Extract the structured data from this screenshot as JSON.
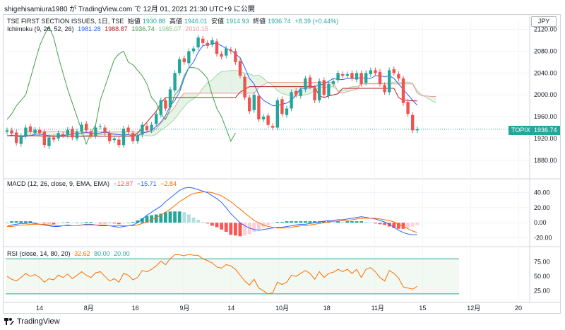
{
  "caption": "shigehisamiura1980 が TradingView.com で 12月 01, 2021 21:30 UTC+9 に公開",
  "currency": "JPY",
  "footer": {
    "brand": "TradingView"
  },
  "main_legend": {
    "title": "TSE FIRST SECTION ISSUES, 1日, TSE",
    "open_label": "始値",
    "open": "1930.88",
    "high_label": "高値",
    "high": "1946.01",
    "low_label": "安値",
    "low": "1914.93",
    "close_label": "終値",
    "close": "1936.74",
    "change": "+8.39 (+0.44%)"
  },
  "ichimoku_legend": {
    "title": "Ichimoku (9, 26, 52, 26)",
    "v1": "1981.28",
    "v2": "1988.87",
    "v3": "1936.74",
    "v4": "1985.07",
    "v5": "2010.15",
    "colors": [
      "#2962ff",
      "#b71c1c",
      "#43a047",
      "#a5d6a7",
      "#ef9a9a"
    ]
  },
  "macd_legend": {
    "title": "MACD (12, 26, close, 9, EMA, EMA)",
    "v1": "−12.87",
    "v2": "−15.71",
    "v3": "−2.84",
    "colors": [
      "#ff5252",
      "#2962ff",
      "#ff6d00"
    ]
  },
  "rsi_legend": {
    "title": "RSI (close, 14, 80, 20)",
    "v1": "32.62",
    "v2": "80.00",
    "v3": "20.00",
    "colors": [
      "#ff6d00",
      "#26a69a",
      "#26a69a"
    ]
  },
  "price_tag": {
    "label": "TOPIX",
    "value": "1936.74"
  },
  "colors": {
    "up": "#26a69a",
    "down": "#ef5350",
    "tenkan": "#2962ff",
    "kijun": "#b71c1c",
    "chikou": "#43a047",
    "cloud_up": "#c8e6c9",
    "cloud_down": "#ffcdd2",
    "macd_line": "#2962ff",
    "signal_line": "#ff6d00",
    "rsi": "#ff6d00"
  },
  "chart_data": [
    {
      "type": "candlestick",
      "title": "TSE FIRST SECTION ISSUES, 1日, TSE",
      "y_ticks": [
        1880,
        1920,
        1960,
        2000,
        2040,
        2080,
        2120
      ],
      "ylim": [
        1850,
        2135
      ],
      "x_ticks": [
        "14",
        "8月",
        "16",
        "9月",
        "14",
        "10月",
        "18",
        "11月",
        "15",
        "12月",
        "20"
      ],
      "close": [
        1935,
        1929,
        1912,
        1925,
        1940,
        1932,
        1936,
        1930,
        1908,
        1922,
        1918,
        1930,
        1926,
        1936,
        1922,
        1933,
        1945,
        1935,
        1925,
        1940,
        1942,
        1930,
        1915,
        1920,
        1908,
        1938,
        1932,
        1915,
        1925,
        1945,
        1935,
        1945,
        1965,
        1990,
        1975,
        2010,
        2040,
        2065,
        2060,
        2080,
        2085,
        2105,
        2095,
        2090,
        2100,
        2075,
        2070,
        2085,
        2080,
        2060,
        2035,
        1995,
        1970,
        2000,
        1955,
        1960,
        1945,
        1940,
        1990,
        1965,
        1975,
        2005,
        2000,
        2010,
        2030,
        2015,
        1990,
        2025,
        2000,
        2020,
        2025,
        2040,
        2035,
        2038,
        2030,
        2040,
        2020,
        2040,
        2045,
        2040,
        2020,
        2005,
        2045,
        2040,
        2030,
        1985,
        1965,
        1935,
        1937
      ],
      "tenkan": [
        1925,
        1926,
        1925,
        1923,
        1924,
        1925,
        1928,
        1928,
        1927,
        1925,
        1924,
        1925,
        1925,
        1927,
        1928,
        1929,
        1930,
        1931,
        1930,
        1929,
        1930,
        1932,
        1930,
        1928,
        1927,
        1926,
        1927,
        1925,
        1925,
        1930,
        1932,
        1935,
        1942,
        1950,
        1962,
        1980,
        1990,
        2005,
        2030,
        2050,
        2060,
        2078,
        2090,
        2092,
        2094,
        2095,
        2090,
        2085,
        2082,
        2075,
        2068,
        2050,
        2030,
        2020,
        2000,
        1990,
        1985,
        1980,
        1980,
        1983,
        1985,
        1990,
        2000,
        2012,
        2012,
        2013,
        2015,
        2018,
        2020,
        2025,
        2030,
        2028,
        2028,
        2030,
        2030,
        2030,
        2032,
        2030,
        2030,
        2035,
        2035,
        2033,
        2035,
        2030,
        2020,
        2010,
        2000,
        1990,
        1981
      ],
      "kijun": [
        1925,
        1925,
        1925,
        1925,
        1925,
        1925,
        1925,
        1925,
        1924,
        1924,
        1924,
        1924,
        1924,
        1924,
        1924,
        1924,
        1924,
        1924,
        1924,
        1924,
        1924,
        1924,
        1924,
        1924,
        1924,
        1924,
        1924,
        1924,
        1930,
        1940,
        1950,
        1960,
        1970,
        1985,
        1995,
        1995,
        1995,
        1995,
        1995,
        1995,
        1995,
        1995,
        1995,
        1995,
        1995,
        1995,
        1995,
        1995,
        1995,
        1995,
        2005,
        2010,
        2015,
        2015,
        2015,
        2015,
        2015,
        2015,
        2015,
        2015,
        2015,
        2015,
        2015,
        2015,
        2015,
        2015,
        2015,
        1998,
        1995,
        1998,
        2000,
        2002,
        2012,
        2012,
        2012,
        2012,
        2012,
        2012,
        2012,
        2012,
        2012,
        2012,
        2012,
        2012,
        1995,
        1990,
        1990,
        1989,
        1989
      ],
      "chikou": [
        1955,
        1965,
        1980,
        1990,
        2000,
        2030,
        2060,
        2090,
        2110,
        2125,
        2105,
        2070,
        2040,
        2010,
        1985,
        1960,
        1935,
        1910,
        1930,
        1945,
        1990,
        2015,
        2040,
        2065,
        2075,
        2080,
        2060,
        2055,
        2045,
        2035,
        2020,
        1995,
        1985,
        1965,
        1955,
        1975,
        2000,
        2010,
        2035,
        2050,
        2050,
        2048,
        2040,
        2030,
        2000,
        1975,
        1960,
        1938,
        1915,
        1930
      ]
    },
    {
      "type": "macd",
      "title": "MACD (12, 26, close, 9, EMA, EMA)",
      "y_ticks": [
        40.0,
        20.0,
        0.0,
        -20.0
      ],
      "ylim": [
        -28,
        50
      ],
      "macd": [
        -5,
        -3,
        -2,
        -1,
        -1,
        0,
        -1,
        -2,
        -3,
        -4,
        -5,
        -5,
        -4,
        -3,
        -4,
        -4,
        -3,
        -2,
        -2,
        -3,
        -4,
        -4,
        -4,
        -5,
        -6,
        -5,
        -4,
        -3,
        0,
        5,
        10,
        14,
        18,
        22,
        28,
        33,
        38,
        43,
        46,
        47,
        46,
        44,
        42,
        40,
        36,
        32,
        27,
        20,
        12,
        6,
        0,
        -4,
        -7,
        -9,
        -10,
        -9,
        -8,
        -7,
        -6,
        -6,
        -5,
        -4,
        -3,
        -2,
        -2,
        -1,
        0,
        1,
        2,
        3,
        3,
        4,
        4,
        5,
        6,
        7,
        8,
        7,
        6,
        5,
        3,
        1,
        -2,
        -6,
        -10,
        -13,
        -15,
        -16,
        -16
      ],
      "signal": [
        -5,
        -5,
        -4,
        -3,
        -3,
        -2,
        -2,
        -2,
        -2,
        -3,
        -3,
        -4,
        -4,
        -4,
        -4,
        -4,
        -3,
        -3,
        -3,
        -3,
        -3,
        -3,
        -4,
        -4,
        -4,
        -4,
        -4,
        -4,
        -3,
        -1,
        1,
        4,
        7,
        10,
        14,
        18,
        23,
        28,
        32,
        36,
        39,
        40,
        41,
        41,
        40,
        38,
        36,
        32,
        28,
        23,
        18,
        13,
        8,
        3,
        0,
        -3,
        -5,
        -6,
        -7,
        -7,
        -7,
        -6,
        -5,
        -4,
        -4,
        -3,
        -2,
        -1,
        0,
        1,
        2,
        2,
        3,
        3,
        4,
        5,
        6,
        6,
        6,
        6,
        5,
        4,
        3,
        1,
        -2,
        -5,
        -8,
        -11,
        -13
      ]
    },
    {
      "type": "rsi",
      "title": "RSI (close, 14, 80, 20)",
      "y_ticks": [
        75.0,
        50.0,
        25.0
      ],
      "ylim": [
        15,
        90
      ],
      "bands": [
        80.0,
        20.0
      ],
      "values": [
        50,
        45,
        42,
        48,
        55,
        50,
        53,
        48,
        40,
        46,
        44,
        52,
        48,
        54,
        46,
        52,
        58,
        52,
        48,
        56,
        58,
        50,
        42,
        46,
        40,
        55,
        52,
        44,
        48,
        60,
        58,
        62,
        68,
        76,
        70,
        80,
        87,
        87,
        85,
        88,
        86,
        86,
        80,
        77,
        73,
        66,
        64,
        70,
        68,
        62,
        52,
        42,
        35,
        45,
        30,
        25,
        20,
        22,
        40,
        36,
        40,
        52,
        50,
        55,
        60,
        55,
        45,
        58,
        48,
        55,
        57,
        62,
        58,
        62,
        55,
        62,
        48,
        62,
        65,
        58,
        48,
        42,
        60,
        55,
        47,
        32,
        30,
        28,
        33
      ]
    }
  ]
}
